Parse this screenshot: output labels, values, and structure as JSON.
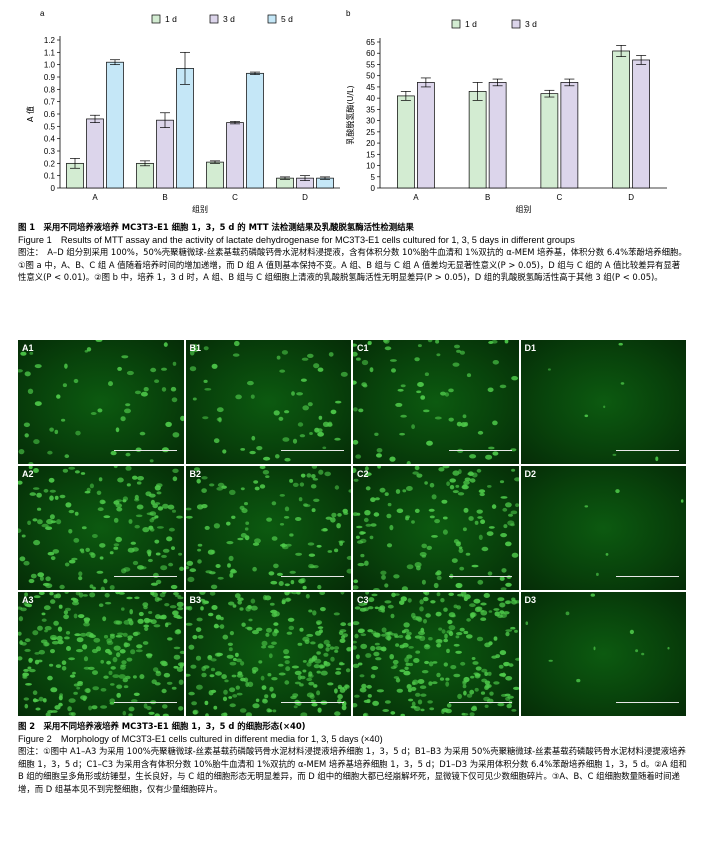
{
  "chart_data": [
    {
      "type": "bar",
      "panel_label": "a",
      "categories": [
        "A",
        "B",
        "C",
        "D"
      ],
      "series": [
        {
          "name": "1 d",
          "values": [
            0.2,
            0.2,
            0.21,
            0.08
          ],
          "errors": [
            0.04,
            0.02,
            0.01,
            0.01
          ],
          "color": "#d3ecd2"
        },
        {
          "name": "3 d",
          "values": [
            0.56,
            0.55,
            0.53,
            0.08
          ],
          "errors": [
            0.03,
            0.06,
            0.01,
            0.02
          ],
          "color": "#dcd5eb"
        },
        {
          "name": "5 d",
          "values": [
            1.02,
            0.97,
            0.93,
            0.08
          ],
          "errors": [
            0.02,
            0.13,
            0.01,
            0.01
          ],
          "color": "#c5e7f7"
        }
      ],
      "xlabel": "组别",
      "ylabel": "A 值",
      "ylim": [
        0,
        1.2
      ],
      "yticks": [
        "0",
        "0.1",
        "0.2",
        "0.3",
        "0.4",
        "0.5",
        "0.6",
        "0.7",
        "0.8",
        "0.9",
        "1.0",
        "1.1",
        "1.2"
      ],
      "legend": "top"
    },
    {
      "type": "bar",
      "panel_label": "b",
      "categories": [
        "A",
        "B",
        "C",
        "D"
      ],
      "series": [
        {
          "name": "1 d",
          "values": [
            41,
            43,
            42,
            61
          ],
          "errors": [
            2,
            4,
            1.5,
            2.5
          ],
          "color": "#d3ecd2"
        },
        {
          "name": "3 d",
          "values": [
            47,
            47,
            47,
            57
          ],
          "errors": [
            2,
            1.5,
            1.5,
            2
          ],
          "color": "#dcd5eb"
        }
      ],
      "xlabel": "组别",
      "ylabel": "乳酸脱氢酶(U/L)",
      "ylim": [
        0,
        65
      ],
      "yticks": [
        "0",
        "5",
        "10",
        "15",
        "20",
        "25",
        "30",
        "35",
        "40",
        "45",
        "50",
        "55",
        "60",
        "65"
      ],
      "legend": "top"
    }
  ],
  "figure1": {
    "title_cn": "图 1　采用不同培养液培养 MC3T3-E1 细胞 1，3，5 d 的 MTT 法检测结果及乳酸脱氢酶活性检测结果",
    "title_en": "Figure 1　Results of MTT assay and the activity of lactate dehydrogenase for MC3T3-E1 cells cultured for 1, 3, 5 days in different groups",
    "note": "图注：　A–D 组分别采用 100%，50%壳聚糖微球-丝素基载药磷酸钙骨水泥材料浸提液，含有体积分数 10%胎牛血清和 1%双抗的 α-MEM 培养基，体积分数 6.4%苯酚培养细胞。①图 a 中，A、B、C 组 A 值随着培养时间的增加递增，而 D 组 A 值则基本保持不变。A 组、B 组与 C 组 A 值差均无显著性意义(P > 0.05)，D 组与 C 组的 A 值比较差异有显著性意义(P < 0.01)。②图 b 中，培养 1，3 d 时，A 组、B 组与 C 组细胞上清液的乳酸脱氢酶活性无明显差异(P > 0.05)，D 组的乳酸脱氢酶活性高于其他 3 组(P < 0.05)。"
  },
  "micrographs": {
    "rows": [
      [
        "A1",
        "B1",
        "C1",
        "D1"
      ],
      [
        "A2",
        "B2",
        "C2",
        "D2"
      ],
      [
        "A3",
        "B3",
        "C3",
        "D3"
      ]
    ],
    "cell_color": "#4ec94a"
  },
  "figure2": {
    "title_cn": "图 2　采用不同培养液培养 MC3T3-E1 细胞 1，3，5 d 的细胞形态(×40)",
    "title_en": "Figure 2　Morphology of MC3T3-E1 cells cultured in different media for 1, 3, 5 days (×40)",
    "note": "图注：①图中 A1–A3 为采用 100%壳聚糖微球-丝素基载药磷酸钙骨水泥材料浸提液培养细胞 1，3，5 d；B1–B3 为采用 50%壳聚糖微球-丝素基载药磷酸钙骨水泥材料浸提液培养细胞 1，3，5 d；C1–C3 为采用含有体积分数 10%胎牛血清和 1%双抗的 α-MEM 培养基培养细胞 1，3，5 d；D1–D3 为采用体积分数 6.4%苯酚培养细胞 1，3，5 d。②A 组和 B 组的细胞呈多角形或纺锤型，生长良好，与 C 组的细胞形态无明显差异，而 D 组中的细胞大都已经崩解坏死，显微镜下仅可见少数细胞碎片。③A、B、C 组细胞数量随着时间递增，而 D 组基本见不到完整细胞，仅有少量细胞碎片。"
  }
}
